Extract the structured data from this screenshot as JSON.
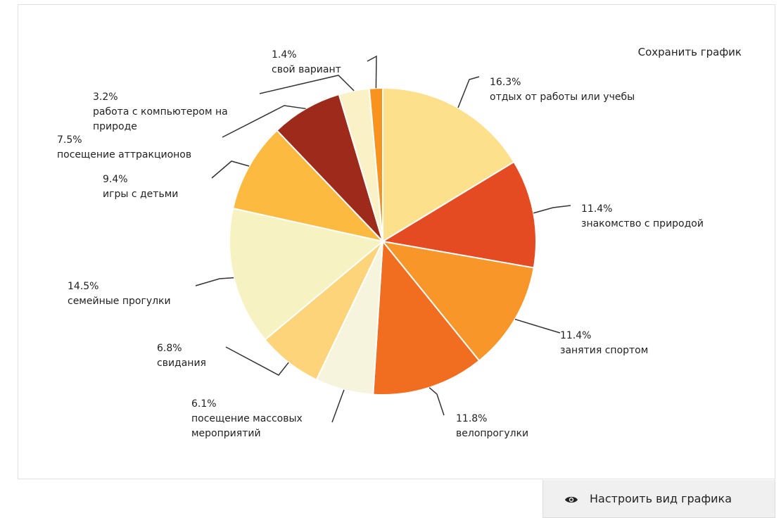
{
  "save_label": "Сохранить график",
  "settings_label": "Настроить вид графика",
  "settings_icon": "eye-icon",
  "chart_data": {
    "type": "pie",
    "title": "",
    "slices": [
      {
        "value": 16.3,
        "pct": "16.3%",
        "label": [
          "отдых от работы или учебы"
        ],
        "color": "#fde08c"
      },
      {
        "value": 11.4,
        "pct": "11.4%",
        "label": [
          "знакомство с природой"
        ],
        "color": "#e54b22"
      },
      {
        "value": 11.4,
        "pct": "11.4%",
        "label": [
          "занятия спортом"
        ],
        "color": "#f8962a"
      },
      {
        "value": 11.8,
        "pct": "11.8%",
        "label": [
          "велопрогулки"
        ],
        "color": "#f16d20"
      },
      {
        "value": 6.1,
        "pct": "6.1%",
        "label": [
          "посещение массовых",
          "мероприятий"
        ],
        "color": "#f7f4de"
      },
      {
        "value": 6.8,
        "pct": "6.8%",
        "label": [
          "свидания"
        ],
        "color": "#fed47b"
      },
      {
        "value": 14.5,
        "pct": "14.5%",
        "label": [
          "семейные прогулки"
        ],
        "color": "#f7f2c2"
      },
      {
        "value": 9.4,
        "pct": "9.4%",
        "label": [
          "игры с детьми"
        ],
        "color": "#fcbb40"
      },
      {
        "value": 7.5,
        "pct": "7.5%",
        "label": [
          "посещение аттракционов"
        ],
        "color": "#9d2a1a"
      },
      {
        "value": 3.2,
        "pct": "3.2%",
        "label": [
          "работа с компьютером на",
          "природе"
        ],
        "color": "#fbf1c6"
      },
      {
        "value": 1.4,
        "pct": "1.4%",
        "label": [
          "свой вариант"
        ],
        "color": "#f7931e"
      }
    ]
  }
}
